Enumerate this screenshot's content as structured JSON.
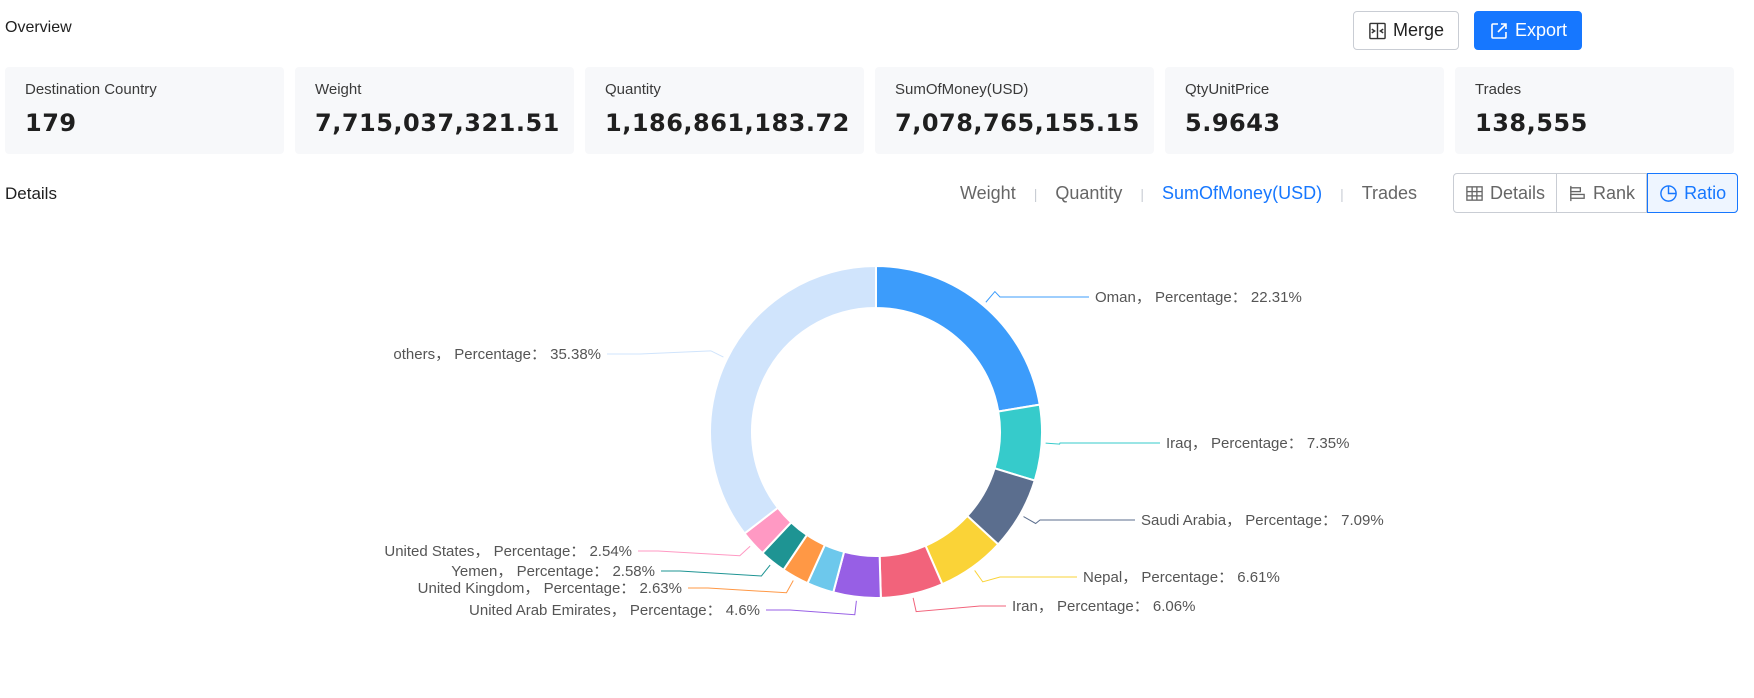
{
  "overview": {
    "title": "Overview"
  },
  "actions": {
    "merge_label": "Merge",
    "export_label": "Export"
  },
  "cards": [
    {
      "label": "Destination Country",
      "value": "179"
    },
    {
      "label": "Weight",
      "value": "7,715,037,321.51"
    },
    {
      "label": "Quantity",
      "value": "1,186,861,183.72"
    },
    {
      "label": "SumOfMoney(USD)",
      "value": "7,078,765,155.15"
    },
    {
      "label": "QtyUnitPrice",
      "value": "5.9643"
    },
    {
      "label": "Trades",
      "value": "138,555"
    }
  ],
  "details": {
    "title": "Details"
  },
  "metric_tabs": [
    {
      "label": "Weight",
      "active": false
    },
    {
      "label": "Quantity",
      "active": false
    },
    {
      "label": "SumOfMoney(USD)",
      "active": true
    },
    {
      "label": "Trades",
      "active": false
    }
  ],
  "view_tabs": [
    {
      "label": "Details",
      "icon": "table-icon",
      "active": false
    },
    {
      "label": "Rank",
      "icon": "bar-rank-icon",
      "active": false
    },
    {
      "label": "Ratio",
      "icon": "pie-icon",
      "active": true
    }
  ],
  "colors": {
    "accent": "#1677ff"
  },
  "chart_data": {
    "type": "pie",
    "donut": true,
    "categories": [
      "Oman",
      "Iraq",
      "Saudi Arabia",
      "Nepal",
      "Iran",
      "United Arab Emirates",
      "",
      "United Kingdom",
      "Yemen",
      "United States",
      "others"
    ],
    "values": [
      22.31,
      7.35,
      7.09,
      6.61,
      6.06,
      4.6,
      2.62,
      2.63,
      2.58,
      2.54,
      35.38
    ],
    "labels": [
      "Oman， Percentage： 22.31%",
      "Iraq， Percentage： 7.35%",
      "Saudi Arabia， Percentage： 7.09%",
      "Nepal， Percentage： 6.61%",
      "Iran， Percentage： 6.06%",
      "United Arab Emirates， Percentage： 4.6%",
      "",
      "United Kingdom， Percentage： 2.63%",
      "Yemen， Percentage： 2.58%",
      "United States， Percentage： 2.54%",
      "others， Percentage： 35.38%"
    ],
    "colors": [
      "#3c9cfb",
      "#36cbcb",
      "#5b6e8e",
      "#fad337",
      "#f2637b",
      "#975fe5",
      "#6dc8ec",
      "#ff9845",
      "#1e9493",
      "#ff99c3",
      "#d0e4fc"
    ]
  }
}
